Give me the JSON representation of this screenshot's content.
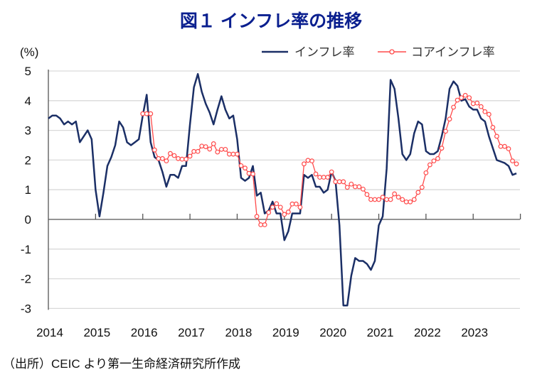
{
  "title": "図１ インフレ率の推移",
  "source": "（出所）CEIC より第一生命経済研究所作成",
  "colors": {
    "headline": "#1b2f66",
    "core": "#ff4a4a",
    "grid": "#d9d9d9",
    "title": "#0a1f8f"
  },
  "chart_data": {
    "type": "line",
    "title": "図１ インフレ率の推移",
    "ylabel": "(%)",
    "xlabel": "",
    "ylim": [
      -3,
      5
    ],
    "yticks": [
      "5",
      "4",
      "3",
      "2",
      "1",
      "0",
      "-1",
      "-2",
      "-3"
    ],
    "xticks": [
      "2014",
      "2015",
      "2016",
      "2017",
      "2018",
      "2019",
      "2020",
      "2021",
      "2022",
      "2023"
    ],
    "x_start": "2014-01",
    "frequency": "monthly",
    "grid": true,
    "legend_placement": "top-right",
    "series": [
      {
        "name": "インフレ率",
        "start": "2014-01",
        "values": [
          3.4,
          3.5,
          3.5,
          3.4,
          3.2,
          3.3,
          3.2,
          3.3,
          2.6,
          2.8,
          3.0,
          2.7,
          1.0,
          0.1,
          0.9,
          1.8,
          2.1,
          2.5,
          3.3,
          3.1,
          2.6,
          2.5,
          2.6,
          2.7,
          3.5,
          4.2,
          2.6,
          2.1,
          2.0,
          1.6,
          1.1,
          1.5,
          1.5,
          1.4,
          1.8,
          1.8,
          3.2,
          4.45,
          4.9,
          4.3,
          3.9,
          3.6,
          3.2,
          3.7,
          4.15,
          3.7,
          3.4,
          3.5,
          2.7,
          1.4,
          1.3,
          1.4,
          1.8,
          0.8,
          0.9,
          0.2,
          0.3,
          0.6,
          0.2,
          0.2,
          -0.7,
          -0.4,
          0.2,
          0.2,
          0.2,
          1.5,
          1.4,
          1.5,
          1.1,
          1.1,
          0.9,
          1.0,
          1.6,
          1.3,
          -0.2,
          -2.9,
          -2.9,
          -1.9,
          -1.3,
          -1.4,
          -1.4,
          -1.5,
          -1.7,
          -1.4,
          -0.2,
          0.1,
          1.7,
          4.7,
          4.4,
          3.4,
          2.2,
          2.0,
          2.2,
          2.9,
          3.3,
          3.2,
          2.3,
          2.2,
          2.2,
          2.3,
          2.8,
          3.4,
          4.4,
          4.65,
          4.5,
          4.0,
          4.05,
          3.8,
          3.7,
          3.7,
          3.4,
          3.3,
          2.8,
          2.4,
          2.0,
          1.95,
          1.9,
          1.8,
          1.5,
          1.55
        ]
      },
      {
        "name": "コアインフレ率",
        "start": "2016-01",
        "values": [
          3.56,
          3.56,
          3.56,
          2.34,
          2.05,
          2.05,
          1.97,
          2.22,
          2.15,
          2.05,
          2.03,
          2.03,
          2.13,
          2.29,
          2.29,
          2.47,
          2.45,
          2.37,
          2.55,
          2.27,
          2.36,
          2.36,
          2.2,
          2.2,
          2.2,
          1.81,
          1.73,
          1.55,
          1.53,
          0.1,
          -0.18,
          -0.18,
          0.23,
          0.41,
          0.53,
          0.41,
          0.17,
          0.25,
          0.52,
          0.52,
          0.41,
          1.87,
          1.99,
          1.97,
          1.53,
          1.42,
          1.42,
          1.42,
          1.6,
          1.27,
          1.27,
          1.27,
          1.08,
          1.19,
          1.1,
          1.1,
          1.02,
          0.84,
          0.67,
          0.67,
          0.67,
          0.75,
          0.67,
          0.67,
          0.86,
          0.75,
          0.67,
          0.59,
          0.59,
          0.67,
          0.91,
          1.08,
          1.57,
          1.84,
          1.97,
          2.05,
          2.4,
          2.97,
          3.38,
          3.78,
          4.02,
          4.1,
          4.18,
          4.1,
          3.9,
          3.92,
          3.8,
          3.63,
          3.54,
          3.1,
          2.8,
          2.46,
          2.46,
          2.38,
          1.97,
          1.87
        ]
      }
    ]
  }
}
